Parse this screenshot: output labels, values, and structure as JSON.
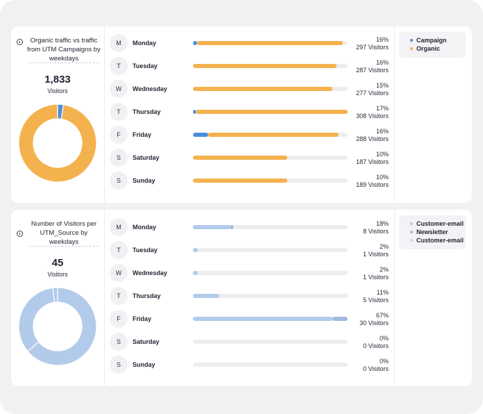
{
  "colors": {
    "campaign": "#4a8edb",
    "organic": "#f4b24e",
    "customer_email": "#b3cbeb",
    "newsletter": "#9fbbe3",
    "track": "#ededf0"
  },
  "panels": [
    {
      "title": "Organic traffic vs traffic from UTM Campaigns by weekdays",
      "total_value": "1,833",
      "total_label": "Visitors",
      "legend": [
        {
          "label": "Campaign",
          "color": "#4a8edb"
        },
        {
          "label": "Organic",
          "color": "#f4b24e"
        }
      ],
      "donut": [
        {
          "name": "Campaign",
          "value": 2.4,
          "color": "#4a8edb"
        },
        {
          "name": "Organic",
          "value": 97.6,
          "color": "#f4b24e"
        }
      ],
      "rows": [
        {
          "letter": "M",
          "day": "Monday",
          "pct": "16%",
          "count": "297 Visitors",
          "segments": [
            {
              "value": 0.025,
              "color": "#4a8edb"
            },
            {
              "value": 0.945,
              "color": "#f4b24e"
            }
          ]
        },
        {
          "letter": "T",
          "day": "Tuesday",
          "pct": "16%",
          "count": "287 Visitors",
          "segments": [
            {
              "value": 0.93,
              "color": "#f4b24e"
            }
          ]
        },
        {
          "letter": "W",
          "day": "Wednesday",
          "pct": "15%",
          "count": "277 Visitors",
          "segments": [
            {
              "value": 0.9,
              "color": "#f4b24e"
            }
          ]
        },
        {
          "letter": "T",
          "day": "Thursday",
          "pct": "17%",
          "count": "308 Visitors",
          "segments": [
            {
              "value": 0.02,
              "color": "#4a8edb"
            },
            {
              "value": 0.98,
              "color": "#f4b24e"
            }
          ]
        },
        {
          "letter": "F",
          "day": "Friday",
          "pct": "16%",
          "count": "288 Visitors",
          "segments": [
            {
              "value": 0.1,
              "color": "#4a8edb"
            },
            {
              "value": 0.84,
              "color": "#f4b24e"
            }
          ]
        },
        {
          "letter": "S",
          "day": "Saturday",
          "pct": "10%",
          "count": "187 Visitors",
          "segments": [
            {
              "value": 0.61,
              "color": "#f4b24e"
            }
          ]
        },
        {
          "letter": "S",
          "day": "Sunday",
          "pct": "10%",
          "count": "189 Visitors",
          "segments": [
            {
              "value": 0.61,
              "color": "#f4b24e"
            }
          ]
        }
      ]
    },
    {
      "title": "Number of Visitors per UTM_Source by weekdays",
      "total_value": "45",
      "total_label": "Visitors",
      "legend": [
        {
          "label": "Customer-email",
          "color": "#b3cbeb"
        },
        {
          "label": "Newsletter",
          "color": "#9fbbe3"
        },
        {
          "label": "Customer-email",
          "color": "#c6d7ef"
        }
      ],
      "donut": [
        {
          "name": "Customer-email",
          "value": 64,
          "color": "#b3cbeb"
        },
        {
          "name": "Newsletter",
          "value": 34,
          "color": "#b3cbeb"
        },
        {
          "name": "Customer-email",
          "value": 2,
          "color": "#b3cbeb"
        }
      ],
      "rows": [
        {
          "letter": "M",
          "day": "Monday",
          "pct": "18%",
          "count": "8 Visitors",
          "segments": [
            {
              "value": 0.24,
              "color": "#b3cbeb"
            },
            {
              "value": 0.02,
              "color": "#9fbbe3"
            }
          ]
        },
        {
          "letter": "T",
          "day": "Tuesday",
          "pct": "2%",
          "count": "1 Visitors",
          "segments": [
            {
              "value": 0.03,
              "color": "#b3cbeb"
            }
          ]
        },
        {
          "letter": "W",
          "day": "Wednesday",
          "pct": "2%",
          "count": "1 Visitors",
          "segments": [
            {
              "value": 0.03,
              "color": "#b3cbeb"
            }
          ]
        },
        {
          "letter": "T",
          "day": "Thursday",
          "pct": "11%",
          "count": "5 Visitors",
          "segments": [
            {
              "value": 0.17,
              "color": "#b3cbeb"
            }
          ]
        },
        {
          "letter": "F",
          "day": "Friday",
          "pct": "67%",
          "count": "30 Visitors",
          "segments": [
            {
              "value": 0.9,
              "color": "#b3cbeb"
            },
            {
              "value": 0.1,
              "color": "#9fbbe3"
            }
          ]
        },
        {
          "letter": "S",
          "day": "Saturday",
          "pct": "0%",
          "count": "0 Visitors",
          "segments": []
        },
        {
          "letter": "S",
          "day": "Sunday",
          "pct": "0%",
          "count": "0 Visitors",
          "segments": []
        }
      ]
    }
  ]
}
